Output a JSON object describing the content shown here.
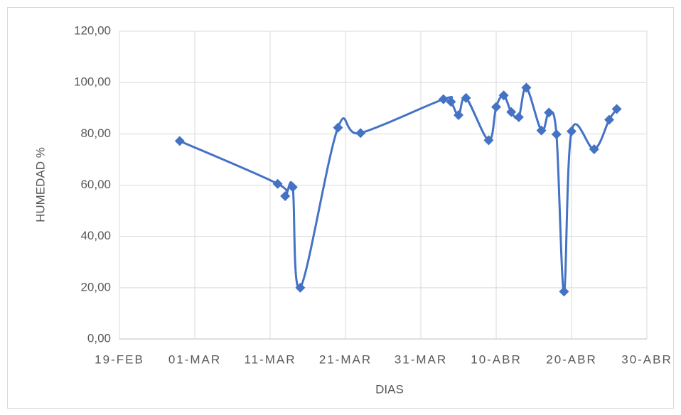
{
  "chart_data": {
    "type": "line",
    "xlabel": "DIAS",
    "ylabel": "HUMEDAD %",
    "x": [
      58,
      71,
      72,
      73,
      74,
      79,
      82,
      93,
      94,
      95,
      96,
      99,
      100,
      101,
      102,
      103,
      104,
      106,
      107,
      108,
      109,
      110,
      113,
      115,
      116
    ],
    "series": [
      {
        "name": "HUMEDAD %",
        "color": "#4472c4",
        "values": [
          77.2,
          60.5,
          55.7,
          59.2,
          20.0,
          82.4,
          80.3,
          93.5,
          92.5,
          87.3,
          94.0,
          77.5,
          90.5,
          95.0,
          88.5,
          86.5,
          98.0,
          81.3,
          88.3,
          79.8,
          18.5,
          81.0,
          74.0,
          85.5,
          89.7
        ]
      }
    ],
    "xlim": [
      50,
      120
    ],
    "xticks": [
      {
        "value": 50,
        "label": "19-FEB"
      },
      {
        "value": 60,
        "label": "01-MAR"
      },
      {
        "value": 70,
        "label": "11-MAR"
      },
      {
        "value": 80,
        "label": "21-MAR"
      },
      {
        "value": 90,
        "label": "31-MAR"
      },
      {
        "value": 100,
        "label": "10-ABR"
      },
      {
        "value": 110,
        "label": "20-ABR"
      },
      {
        "value": 120,
        "label": "30-ABR"
      }
    ],
    "ylim": [
      0,
      120
    ],
    "yticks": [
      {
        "value": 0,
        "label": "0,00"
      },
      {
        "value": 20,
        "label": "20,00"
      },
      {
        "value": 40,
        "label": "40,00"
      },
      {
        "value": 60,
        "label": "60,00"
      },
      {
        "value": 80,
        "label": "80,00"
      },
      {
        "value": 100,
        "label": "100,00"
      },
      {
        "value": 120,
        "label": "120,00"
      }
    ],
    "grid": true,
    "smooth": true
  }
}
